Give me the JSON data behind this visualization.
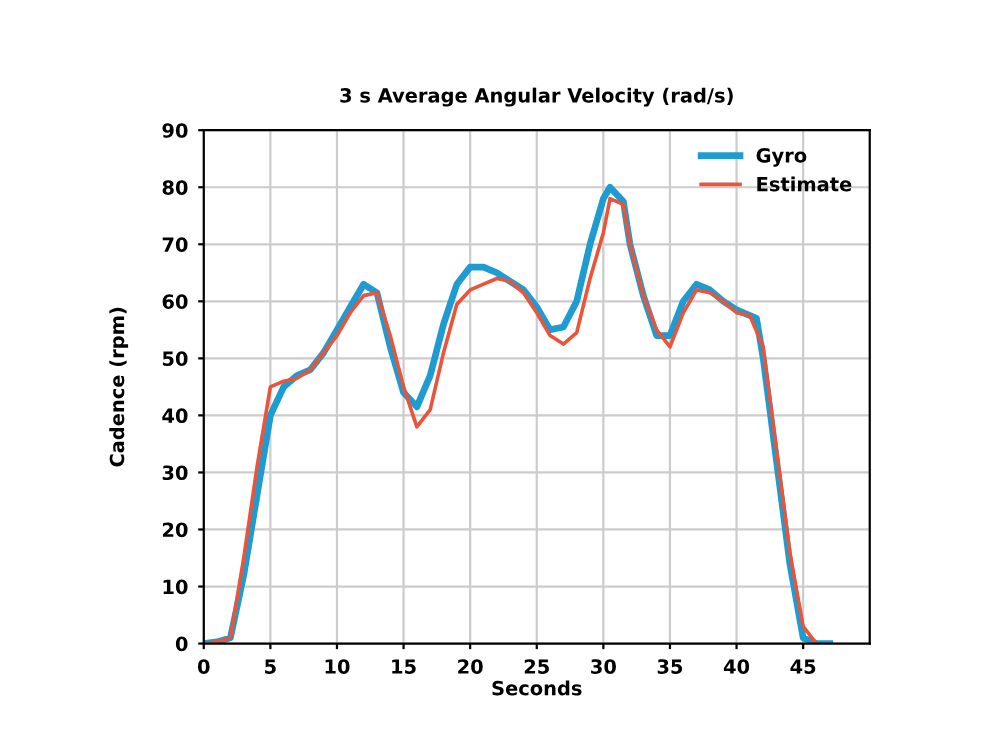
{
  "chart_data": {
    "type": "line",
    "title": "3 s Average Angular Velocity (rad/s)",
    "xlabel": "Seconds",
    "ylabel": "Cadence (rpm)",
    "xlim": [
      0,
      50
    ],
    "xticks": [
      0,
      5,
      10,
      15,
      20,
      25,
      30,
      35,
      40,
      45
    ],
    "ylim": [
      0,
      90
    ],
    "yticks": [
      0,
      10,
      20,
      30,
      40,
      50,
      60,
      70,
      80,
      90
    ],
    "grid": true,
    "legend": "top right",
    "series": [
      {
        "name": "Gyro",
        "color": "#1e9bd0",
        "x": [
          0,
          1,
          2,
          3,
          4,
          5,
          6,
          7,
          8,
          9,
          10,
          11,
          12,
          13,
          14,
          15,
          16,
          17,
          18,
          19,
          20,
          21,
          22,
          23,
          24,
          25,
          26,
          27,
          28,
          29,
          30,
          30.5,
          31.5,
          32,
          33,
          34,
          35,
          36,
          37,
          38,
          39,
          40,
          41.5,
          42,
          43,
          44,
          45,
          46,
          47
        ],
        "values": [
          0,
          0.3,
          1,
          12,
          26,
          40,
          45,
          47,
          48,
          51,
          55,
          59,
          63,
          61.5,
          52,
          44,
          41.5,
          47,
          56,
          63,
          66,
          66,
          65,
          63.5,
          62,
          59,
          55,
          55.5,
          60,
          70,
          78,
          80,
          77.5,
          70,
          61,
          54,
          54,
          60,
          63,
          62,
          60,
          58.5,
          57,
          50,
          32,
          14,
          1,
          0,
          0
        ]
      },
      {
        "name": "Estimate",
        "color": "#e8553a",
        "x": [
          0,
          1,
          2,
          3,
          4,
          5,
          6,
          7,
          8,
          9,
          10,
          11,
          12,
          13,
          14,
          15,
          16,
          17,
          18,
          19,
          20,
          21,
          22,
          23,
          24,
          25,
          26,
          27,
          28,
          29,
          30,
          30.5,
          31.5,
          32,
          33,
          34,
          35,
          36,
          37,
          38,
          39,
          40,
          41,
          42,
          43,
          44,
          45,
          46
        ],
        "values": [
          0,
          0.3,
          1,
          15,
          31,
          45,
          46,
          46.5,
          48,
          51,
          54,
          58,
          61,
          61.5,
          54,
          45,
          38,
          41,
          51,
          59.5,
          62,
          63,
          64,
          63.5,
          61.5,
          58,
          54,
          52.5,
          54.5,
          64,
          72,
          78,
          77,
          70,
          61,
          55,
          52,
          58,
          62,
          61.5,
          60,
          58,
          57.5,
          52,
          34,
          16,
          3,
          0
        ]
      }
    ]
  }
}
